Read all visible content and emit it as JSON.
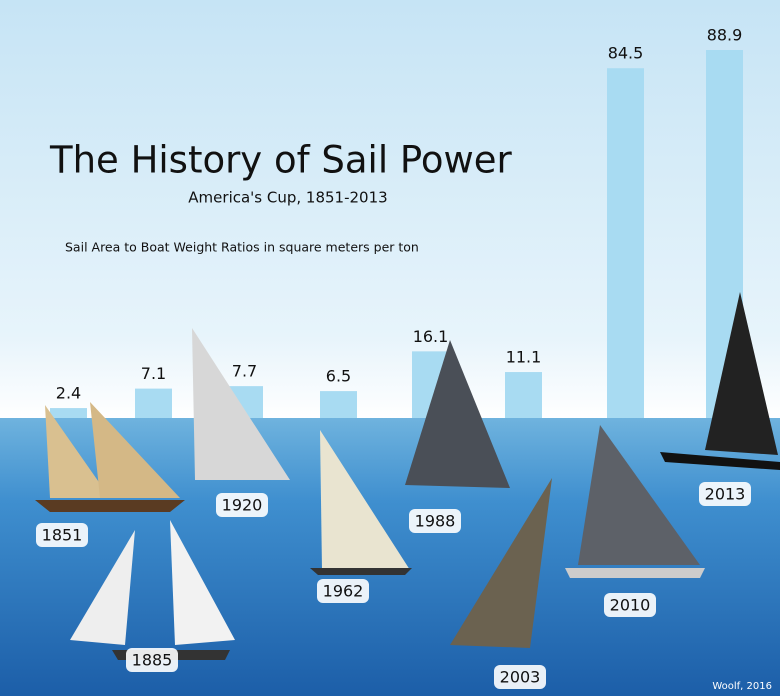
{
  "chart_data": {
    "type": "bar",
    "title": "The History of Sail Power",
    "subtitle": "America's Cup, 1851-2013",
    "description": "Sail Area to Boat Weight Ratios in square meters per ton",
    "credit": "Woolf, 2016",
    "categories": [
      "1851",
      "1885",
      "1920",
      "1962",
      "1988",
      "2003",
      "2010",
      "2013"
    ],
    "values": [
      2.4,
      7.1,
      7.7,
      6.5,
      16.1,
      11.1,
      84.5,
      88.9
    ],
    "color": "#a8dbf2"
  }
}
